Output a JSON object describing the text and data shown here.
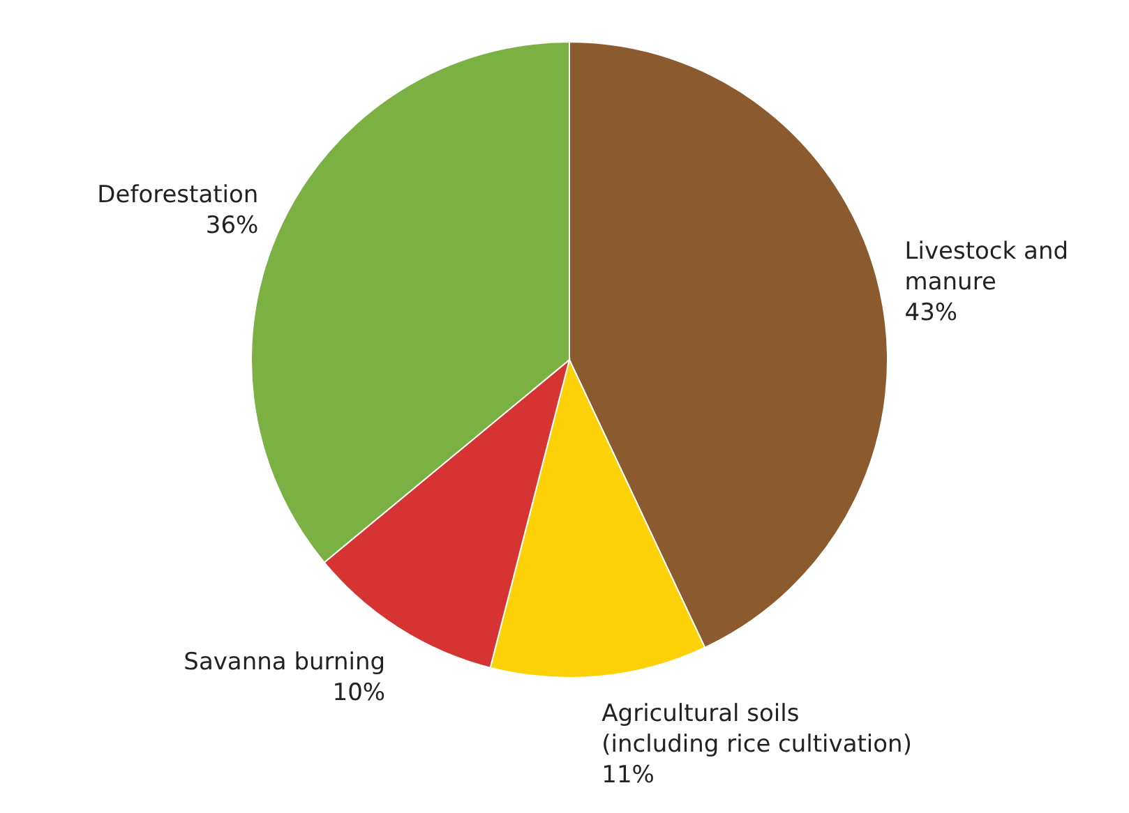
{
  "chart_data": {
    "type": "pie",
    "categories": [
      "Livestock and\nmanure",
      "Agricultural soils\n(including rice cultivation)",
      "Savanna burning",
      "Deforestation"
    ],
    "values": [
      43,
      11,
      10,
      36
    ],
    "colors": [
      "#8b5a2f",
      "#fcd107",
      "#d63433",
      "#7ab142"
    ],
    "value_labels": [
      "43%",
      "11%",
      "10%",
      "36%"
    ]
  }
}
